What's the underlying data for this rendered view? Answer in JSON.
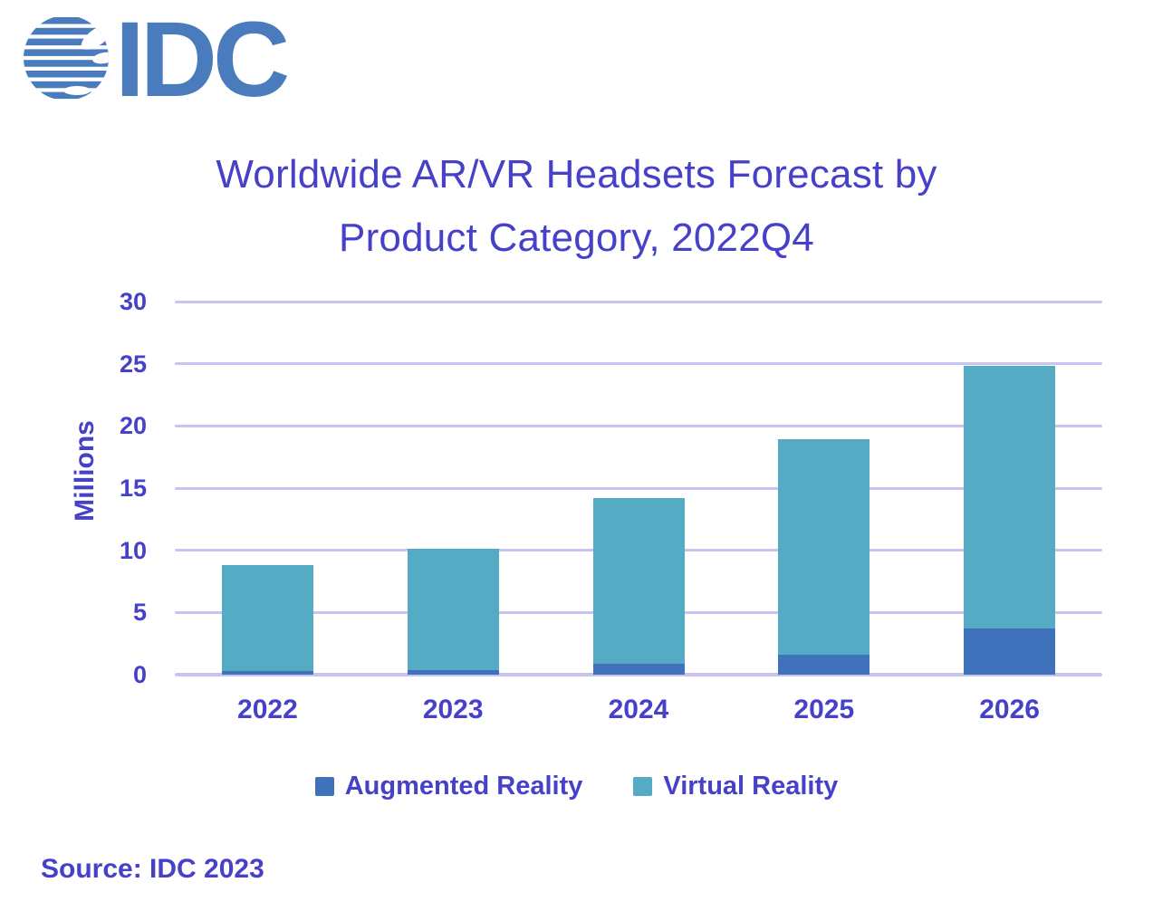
{
  "logo": {
    "text": "IDC",
    "icon": "idc-globe-icon",
    "color": "#4a7cbd"
  },
  "header": {
    "title_line1": "Worldwide AR/VR Headsets Forecast by",
    "title_line2": "Product Category, 2022Q4"
  },
  "chart_data": {
    "type": "bar",
    "stacked": true,
    "title": "Worldwide AR/VR Headsets Forecast by Product Category, 2022Q4",
    "categories": [
      "2022",
      "2023",
      "2024",
      "2025",
      "2026"
    ],
    "series": [
      {
        "name": "Augmented Reality",
        "color": "#4072bc",
        "values": [
          0.3,
          0.4,
          0.9,
          1.6,
          3.7
        ]
      },
      {
        "name": "Virtual Reality",
        "color": "#56abc4",
        "values": [
          8.5,
          9.7,
          13.3,
          17.3,
          21.1
        ]
      }
    ],
    "totals": [
      8.8,
      10.1,
      14.2,
      18.9,
      24.8
    ],
    "xlabel": "",
    "ylabel": "Millions",
    "ylim": [
      0,
      30
    ],
    "yticks": [
      0,
      5,
      10,
      15,
      20,
      25,
      30
    ],
    "grid": true,
    "legend_position": "bottom",
    "gridline_color": "#c7c4f2",
    "text_color": "#4741c9"
  },
  "footer": {
    "source": "Source: IDC 2023"
  }
}
